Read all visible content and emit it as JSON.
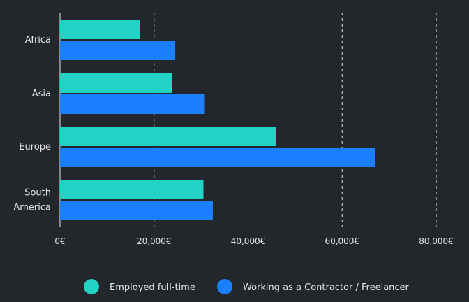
{
  "chart_data": {
    "type": "bar",
    "orientation": "horizontal",
    "categories": [
      [
        "Africa"
      ],
      [
        "Asia"
      ],
      [
        "Europe"
      ],
      [
        "South",
        "America"
      ]
    ],
    "series": [
      {
        "name": "Employed full-time",
        "values": [
          17000,
          23800,
          46000,
          30500
        ],
        "color": "#22d3c5"
      },
      {
        "name": "Working as a Contractor / Freelancer",
        "values": [
          24500,
          30800,
          67000,
          32500
        ],
        "color": "#1a80ff"
      }
    ],
    "xlim": [
      0,
      80000
    ],
    "xticks": [
      0,
      20000,
      40000,
      60000,
      80000
    ],
    "xtick_labels": [
      "0€",
      "20,000€",
      "40,000€",
      "60,000€",
      "80,000€"
    ],
    "grid": "vertical dashed",
    "legend_position": "bottom"
  }
}
